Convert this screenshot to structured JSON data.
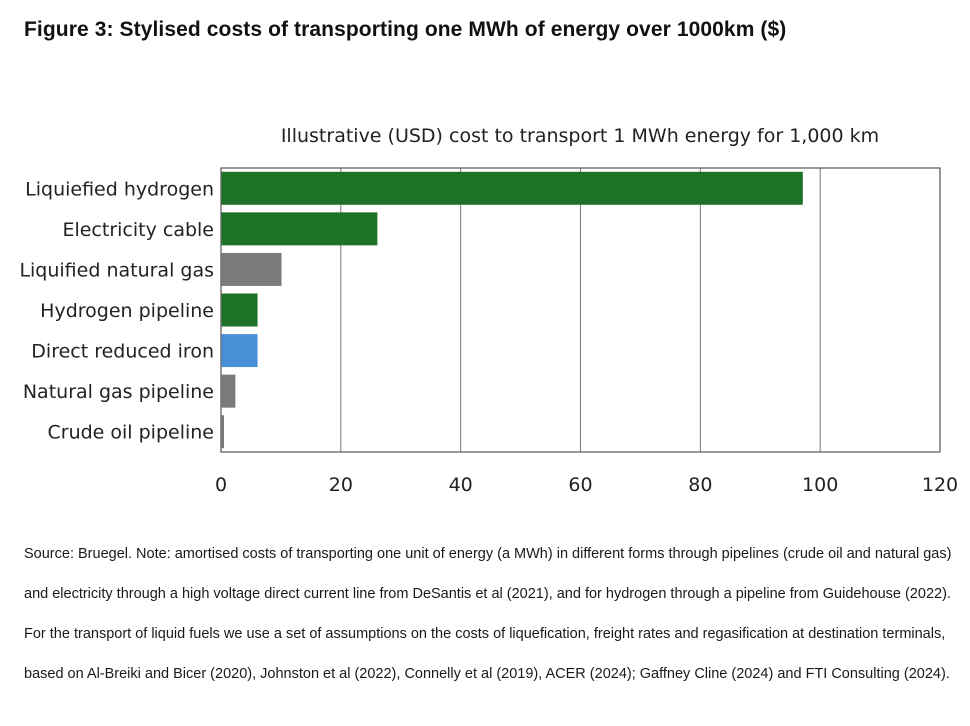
{
  "figure_title": "Figure 3: Stylised costs of transporting one MWh of energy over 1000km ($)",
  "source_note": "Source: Bruegel. Note: amortised costs of transporting one unit of energy (a MWh) in different forms through pipelines (crude oil and natural gas) and electricity through a high voltage direct current line from DeSantis et al (2021), and for hydrogen through a pipeline from Guidehouse (2022). For the transport of liquid fuels we use a set of assumptions on the costs of liquefication, freight rates and regasification at destination terminals, based on Al-Breiki and Bicer (2020), Johnston et al (2022), Connelly et al (2019), ACER (2024); Gaffney Cline (2024) and FTI Consulting (2024).",
  "chart_data": {
    "type": "bar",
    "orientation": "horizontal",
    "title": "Illustrative (USD) cost to transport 1 MWh energy for 1,000 km",
    "xlabel": "",
    "ylabel": "",
    "categories": [
      "Liquiefied hydrogen",
      "Electricity cable",
      "Liquified natural gas",
      "Hydrogen pipeline",
      "Direct reduced iron",
      "Natural gas pipeline",
      "Crude oil pipeline"
    ],
    "values": [
      97,
      26,
      10,
      6,
      6,
      2.3,
      0.4
    ],
    "colors": [
      "#1e7228",
      "#1e7228",
      "#7b7b7b",
      "#1e7228",
      "#4a90d9",
      "#7b7b7b",
      "#7b7b7b"
    ],
    "xlim": [
      0,
      120
    ],
    "xticks": [
      "0",
      "20",
      "40",
      "60",
      "80",
      "100",
      "120"
    ],
    "grid": "vertical"
  }
}
